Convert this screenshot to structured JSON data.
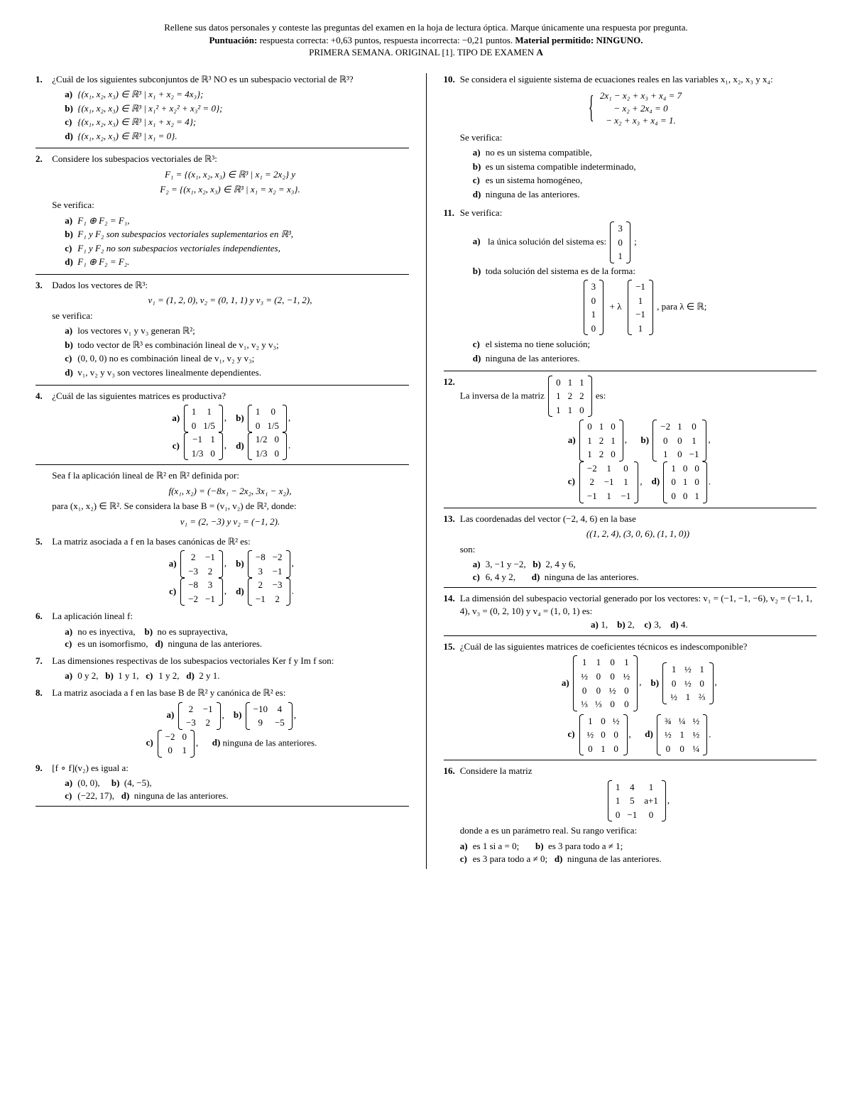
{
  "header": {
    "line1": "Rellene sus datos personales y conteste las preguntas del examen en la hoja de lectura óptica. Marque únicamente una respuesta por pregunta.",
    "line2_a": "Puntuación:",
    "line2_b": " respuesta correcta: +0,63 puntos, respuesta incorrecta: −0,21 puntos. ",
    "line2_c": "Material permitido: NINGUNO.",
    "line3": "PRIMERA SEMANA. ORIGINAL [1].  TIPO DE EXAMEN ",
    "line3_b": "A"
  },
  "q1": {
    "text": "¿Cuál de los siguientes subconjuntos de ℝ³ NO es un subespacio vectorial de ℝ³?",
    "a": "{(x₁, x₂, x₃) ∈ ℝ³ | x₁ + x₂ = 4x₃};",
    "b": "{(x₁, x₂, x₃) ∈ ℝ³ | x₁² + x₂² + x₃² = 0};",
    "c": "{(x₁, x₂, x₃) ∈ ℝ³ | x₁ + x₂ = 4};",
    "d": "{(x₁, x₂, x₃) ∈ ℝ³ | x₁ = 0}."
  },
  "q2": {
    "text": "Considere los subespacios vectoriales de ℝ³:",
    "f1": "F₁ = {(x₁, x₂, x₃) ∈ ℝ³ | x₁ = 2x₂}   y",
    "f2": "F₂ = {(x₁, x₂, x₃) ∈ ℝ³ | x₁ = x₂ = x₃}.",
    "sev": "Se verifica:",
    "a": "F₁ ⊕ F₂ = F₁,",
    "b": "F₁ y F₂ son subespacios vectoriales suplementarios en ℝ³,",
    "c": "F₁ y F₂ no son subespacios vectoriales independientes,",
    "d": "F₁ ⊕ F₂ = F₂."
  },
  "q3": {
    "text": "Dados los vectores de ℝ³:",
    "vec": "v₁ = (1, 2, 0),    v₂ = (0, 1, 1)   y   v₃ = (2, −1, 2),",
    "sev": "se verifica:",
    "a": "los vectores v₁ y v₃ generan ℝ²;",
    "b": "todo vector de ℝ³ es combinación lineal de v₁, v₂ y v₃;",
    "c": "(0, 0, 0) no es combinación lineal de v₁, v₂ y v₃;",
    "d": "v₁, v₂ y v₃ son vectores linealmente dependientes."
  },
  "q4": {
    "text": "¿Cuál de las siguientes matrices es productiva?",
    "ma": [
      [
        "1",
        "1"
      ],
      [
        "0",
        "1/5"
      ]
    ],
    "mb": [
      [
        "1",
        "0"
      ],
      [
        "0",
        "1/5"
      ]
    ],
    "mc": [
      [
        "−1",
        "1"
      ],
      [
        "1/3",
        "0"
      ]
    ],
    "md": [
      [
        "1/2",
        "0"
      ],
      [
        "1/3",
        "0"
      ]
    ]
  },
  "q_pre5": {
    "l1": "Sea f la aplicación lineal de ℝ² en ℝ² definida por:",
    "eq": "f(x₁, x₂) = (−8x₁ − 2x₂, 3x₁ − x₂),",
    "l2": "para (x₁, x₂) ∈ ℝ². Se considera la base B = (v₁, v₂) de ℝ², donde:",
    "eq2": "v₁ = (2, −3)   y   v₂ = (−1, 2)."
  },
  "q5": {
    "text": "La matriz asociada a f en la bases canónicas de ℝ² es:",
    "ma": [
      [
        "2",
        "−1"
      ],
      [
        "−3",
        "2"
      ]
    ],
    "mb": [
      [
        "−8",
        "−2"
      ],
      [
        "3",
        "−1"
      ]
    ],
    "mc": [
      [
        "−8",
        "3"
      ],
      [
        "−2",
        "−1"
      ]
    ],
    "md": [
      [
        "2",
        "−3"
      ],
      [
        "−1",
        "2"
      ]
    ]
  },
  "q6": {
    "text": "La aplicación lineal f:",
    "a": "no es inyectiva,",
    "b": "no es suprayectiva,",
    "c": "es un isomorfismo,",
    "d": "ninguna de las anteriores."
  },
  "q7": {
    "text": "Las dimensiones respectivas de los subespacios vectoriales Ker f y Im f son:",
    "a": "0 y 2,",
    "b": "1 y 1,",
    "c": "1 y 2,",
    "d": "2 y 1."
  },
  "q8": {
    "text": "La matriz asociada a f en las base B de ℝ² y canónica de ℝ² es:",
    "ma": [
      [
        "2",
        "−1"
      ],
      [
        "−3",
        "2"
      ]
    ],
    "mb": [
      [
        "−10",
        "4"
      ],
      [
        "9",
        "−5"
      ]
    ],
    "mc": [
      [
        "−2",
        "0"
      ],
      [
        "0",
        "1"
      ]
    ],
    "d": "ninguna de las anteriores."
  },
  "q9": {
    "text": "[f ∘ f](v₂) es igual a:",
    "a": "(0, 0),",
    "b": "(4, −5),",
    "c": "(−22, 17),",
    "d": "ninguna de las anteriores."
  },
  "q10": {
    "text": "Se considera el siguiente sistema de ecuaciones reales en las variables x₁, x₂, x₃ y x₄:",
    "eq1": "2x₁ − x₂ + x₃ +  x₄ = 7",
    "eq2": "     − x₂      + 2x₄ = 0",
    "eq3": "   − x₂ + x₃ +  x₄ = 1.",
    "sev": "Se verifica:",
    "a": "no es un sistema compatible,",
    "b": "es un sistema compatible indeterminado,",
    "c": "es un sistema homogéneo,",
    "d": "ninguna de las anteriores."
  },
  "q11": {
    "text": "Se verifica:",
    "a_pre": "la única solución del sistema es: ",
    "va": [
      [
        "3"
      ],
      [
        "0"
      ],
      [
        "1"
      ]
    ],
    "a_post": ";",
    "b": "toda solución del sistema es de la forma:",
    "vb1": [
      [
        "3"
      ],
      [
        "0"
      ],
      [
        "1"
      ],
      [
        "0"
      ]
    ],
    "vb2": [
      [
        "−1"
      ],
      [
        "1"
      ],
      [
        "−1"
      ],
      [
        "1"
      ]
    ],
    "b_post": ", para λ ∈ ℝ;",
    "c": "el sistema no tiene solución;",
    "d": "ninguna de las anteriores."
  },
  "q12": {
    "text_pre": "La inversa de la matriz ",
    "m": [
      [
        "0",
        "1",
        "1"
      ],
      [
        "1",
        "2",
        "2"
      ],
      [
        "1",
        "1",
        "0"
      ]
    ],
    "text_post": " es:",
    "ma": [
      [
        "0",
        "1",
        "0"
      ],
      [
        "1",
        "2",
        "1"
      ],
      [
        "1",
        "2",
        "0"
      ]
    ],
    "mb": [
      [
        "−2",
        "1",
        "0"
      ],
      [
        "0",
        "0",
        "1"
      ],
      [
        "1",
        "0",
        "−1"
      ]
    ],
    "mc": [
      [
        "−2",
        "1",
        "0"
      ],
      [
        "2",
        "−1",
        "1"
      ],
      [
        "−1",
        "1",
        "−1"
      ]
    ],
    "md": [
      [
        "1",
        "0",
        "0"
      ],
      [
        "0",
        "1",
        "0"
      ],
      [
        "0",
        "0",
        "1"
      ]
    ]
  },
  "q13": {
    "text": "Las coordenadas del vector (−2, 4, 6) en la base",
    "base": "((1, 2, 4), (3, 0, 6), (1, 1, 0))",
    "son": "son:",
    "a": "3, −1 y −2,",
    "b": "2, 4 y 6,",
    "c": "6, 4 y 2,",
    "d": "ninguna de las anteriores."
  },
  "q14": {
    "text": "La dimensión del subespacio vectorial generado por los vectores: v₁ = (−1, −1, −6), v₂ = (−1, 1, 4), v₃ = (0, 2, 10) y v₄ = (1, 0, 1) es:",
    "a": "1,",
    "b": "2,",
    "c": "3,",
    "d": "4."
  },
  "q15": {
    "text": "¿Cuál de las siguientes matrices de coeficientes técnicos es indescomponible?",
    "ma": [
      [
        "1",
        "1",
        "0",
        "1"
      ],
      [
        "½",
        "0",
        "0",
        "½"
      ],
      [
        "0",
        "0",
        "½",
        "0"
      ],
      [
        "⅓",
        "⅓",
        "0",
        "0"
      ]
    ],
    "mb": [
      [
        "1",
        "½",
        "1"
      ],
      [
        "0",
        "½",
        "0"
      ],
      [
        "½",
        "1",
        "⅔"
      ]
    ],
    "mc": [
      [
        "1",
        "0",
        "½"
      ],
      [
        "½",
        "0",
        "0"
      ],
      [
        "0",
        "1",
        "0"
      ]
    ],
    "md": [
      [
        "¾",
        "¼",
        "½"
      ],
      [
        "½",
        "1",
        "½"
      ],
      [
        "0",
        "0",
        "¼"
      ]
    ]
  },
  "q16": {
    "text": "Considere la matriz",
    "m": [
      [
        "1",
        "4",
        "1"
      ],
      [
        "1",
        "5",
        "a+1"
      ],
      [
        "0",
        "−1",
        "0"
      ]
    ],
    "post": "donde a es un parámetro real. Su rango verifica:",
    "a": "es 1 si a = 0;",
    "b": "es 3 para todo a ≠ 1;",
    "c": "es 3 para todo a ≠ 0;",
    "d": "ninguna de las anteriores."
  }
}
